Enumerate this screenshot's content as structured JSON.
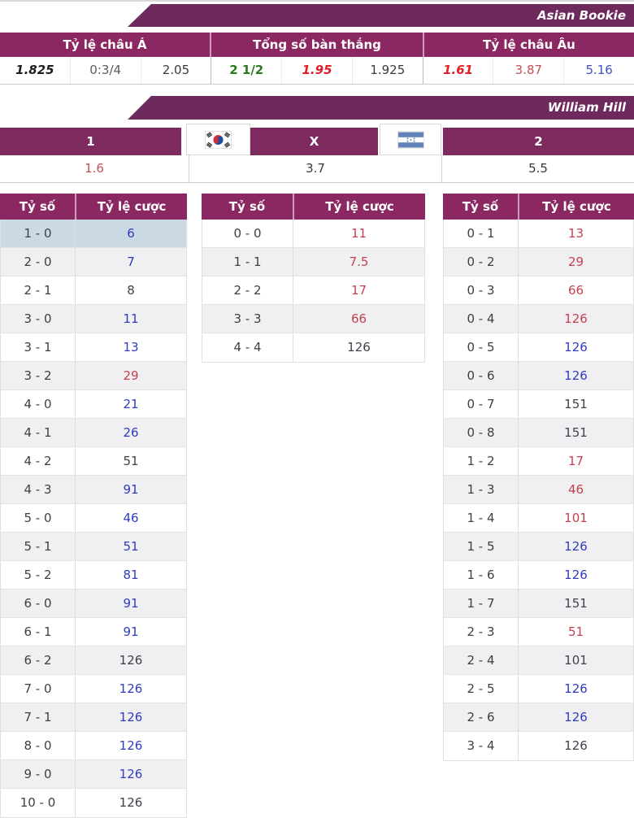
{
  "sections": {
    "asian_bookie": {
      "banner": "Asian Bookie",
      "headers": [
        "Tỷ lệ châu Á",
        "Tổng số bàn thắng",
        "Tỷ lệ châu Âu"
      ],
      "values": [
        {
          "text": "1.825",
          "style": "bold-italic-dark"
        },
        {
          "text": "0:3/4",
          "style": "gray"
        },
        {
          "text": "2.05",
          "style": "dark"
        },
        {
          "text": "2 1/2",
          "style": "green"
        },
        {
          "text": "1.95",
          "style": "red-bold-italic"
        },
        {
          "text": "1.925",
          "style": "dark"
        },
        {
          "text": "1.61",
          "style": "red-bold-italic"
        },
        {
          "text": "3.87",
          "style": "red"
        },
        {
          "text": "5.16",
          "style": "blue"
        }
      ]
    },
    "william_hill": {
      "banner": "William Hill",
      "outcomes": {
        "home": "1",
        "draw": "X",
        "away": "2"
      },
      "flags": {
        "home": "south-korea",
        "away": "honduras"
      },
      "odds": [
        "1.6",
        "3.7",
        "5.5"
      ],
      "odds_styles": [
        "red",
        "dark",
        "dark"
      ]
    },
    "correct_score": {
      "col_headers": {
        "score": "Tỷ số",
        "odds": "Tỷ lệ cược"
      },
      "tables": [
        {
          "rows": [
            {
              "score": "1 - 0",
              "odds": "6",
              "color": "blue",
              "highlight": true
            },
            {
              "score": "2 - 0",
              "odds": "7",
              "color": "blue"
            },
            {
              "score": "2 - 1",
              "odds": "8",
              "color": "black"
            },
            {
              "score": "3 - 0",
              "odds": "11",
              "color": "blue"
            },
            {
              "score": "3 - 1",
              "odds": "13",
              "color": "blue"
            },
            {
              "score": "3 - 2",
              "odds": "29",
              "color": "red"
            },
            {
              "score": "4 - 0",
              "odds": "21",
              "color": "blue"
            },
            {
              "score": "4 - 1",
              "odds": "26",
              "color": "blue"
            },
            {
              "score": "4 - 2",
              "odds": "51",
              "color": "black"
            },
            {
              "score": "4 - 3",
              "odds": "91",
              "color": "blue"
            },
            {
              "score": "5 - 0",
              "odds": "46",
              "color": "blue"
            },
            {
              "score": "5 - 1",
              "odds": "51",
              "color": "blue"
            },
            {
              "score": "5 - 2",
              "odds": "81",
              "color": "blue"
            },
            {
              "score": "6 - 0",
              "odds": "91",
              "color": "blue"
            },
            {
              "score": "6 - 1",
              "odds": "91",
              "color": "blue"
            },
            {
              "score": "6 - 2",
              "odds": "126",
              "color": "black"
            },
            {
              "score": "7 - 0",
              "odds": "126",
              "color": "blue"
            },
            {
              "score": "7 - 1",
              "odds": "126",
              "color": "blue"
            },
            {
              "score": "8 - 0",
              "odds": "126",
              "color": "blue"
            },
            {
              "score": "9 - 0",
              "odds": "126",
              "color": "blue"
            },
            {
              "score": "10 - 0",
              "odds": "126",
              "color": "black"
            }
          ]
        },
        {
          "rows": [
            {
              "score": "0 - 0",
              "odds": "11",
              "color": "red"
            },
            {
              "score": "1 - 1",
              "odds": "7.5",
              "color": "red"
            },
            {
              "score": "2 - 2",
              "odds": "17",
              "color": "red"
            },
            {
              "score": "3 - 3",
              "odds": "66",
              "color": "red"
            },
            {
              "score": "4 - 4",
              "odds": "126",
              "color": "black"
            }
          ]
        },
        {
          "rows": [
            {
              "score": "0 - 1",
              "odds": "13",
              "color": "red"
            },
            {
              "score": "0 - 2",
              "odds": "29",
              "color": "red"
            },
            {
              "score": "0 - 3",
              "odds": "66",
              "color": "red"
            },
            {
              "score": "0 - 4",
              "odds": "126",
              "color": "red"
            },
            {
              "score": "0 - 5",
              "odds": "126",
              "color": "blue"
            },
            {
              "score": "0 - 6",
              "odds": "126",
              "color": "blue"
            },
            {
              "score": "0 - 7",
              "odds": "151",
              "color": "black"
            },
            {
              "score": "0 - 8",
              "odds": "151",
              "color": "black"
            },
            {
              "score": "1 - 2",
              "odds": "17",
              "color": "red"
            },
            {
              "score": "1 - 3",
              "odds": "46",
              "color": "red"
            },
            {
              "score": "1 - 4",
              "odds": "101",
              "color": "red"
            },
            {
              "score": "1 - 5",
              "odds": "126",
              "color": "blue"
            },
            {
              "score": "1 - 6",
              "odds": "126",
              "color": "blue"
            },
            {
              "score": "1 - 7",
              "odds": "151",
              "color": "black"
            },
            {
              "score": "2 - 3",
              "odds": "51",
              "color": "red"
            },
            {
              "score": "2 - 4",
              "odds": "101",
              "color": "black"
            },
            {
              "score": "2 - 5",
              "odds": "126",
              "color": "blue"
            },
            {
              "score": "2 - 6",
              "odds": "126",
              "color": "blue"
            },
            {
              "score": "3 - 4",
              "odds": "126",
              "color": "black"
            }
          ]
        }
      ]
    }
  },
  "colors": {
    "banner_purple": "#6e2a5d",
    "header_purple": "#8b2862",
    "bar_purple": "#7d2a5f",
    "odds_blue": "#2e3cbe",
    "odds_black": "#3e434b",
    "odds_red": "#c4414f",
    "top_red": "#e41e26",
    "green": "#2b7a1f",
    "euro_blue": "#3d51c5",
    "highlight_row": "#cbd9e5",
    "stripe_row": "#f0eff1"
  }
}
